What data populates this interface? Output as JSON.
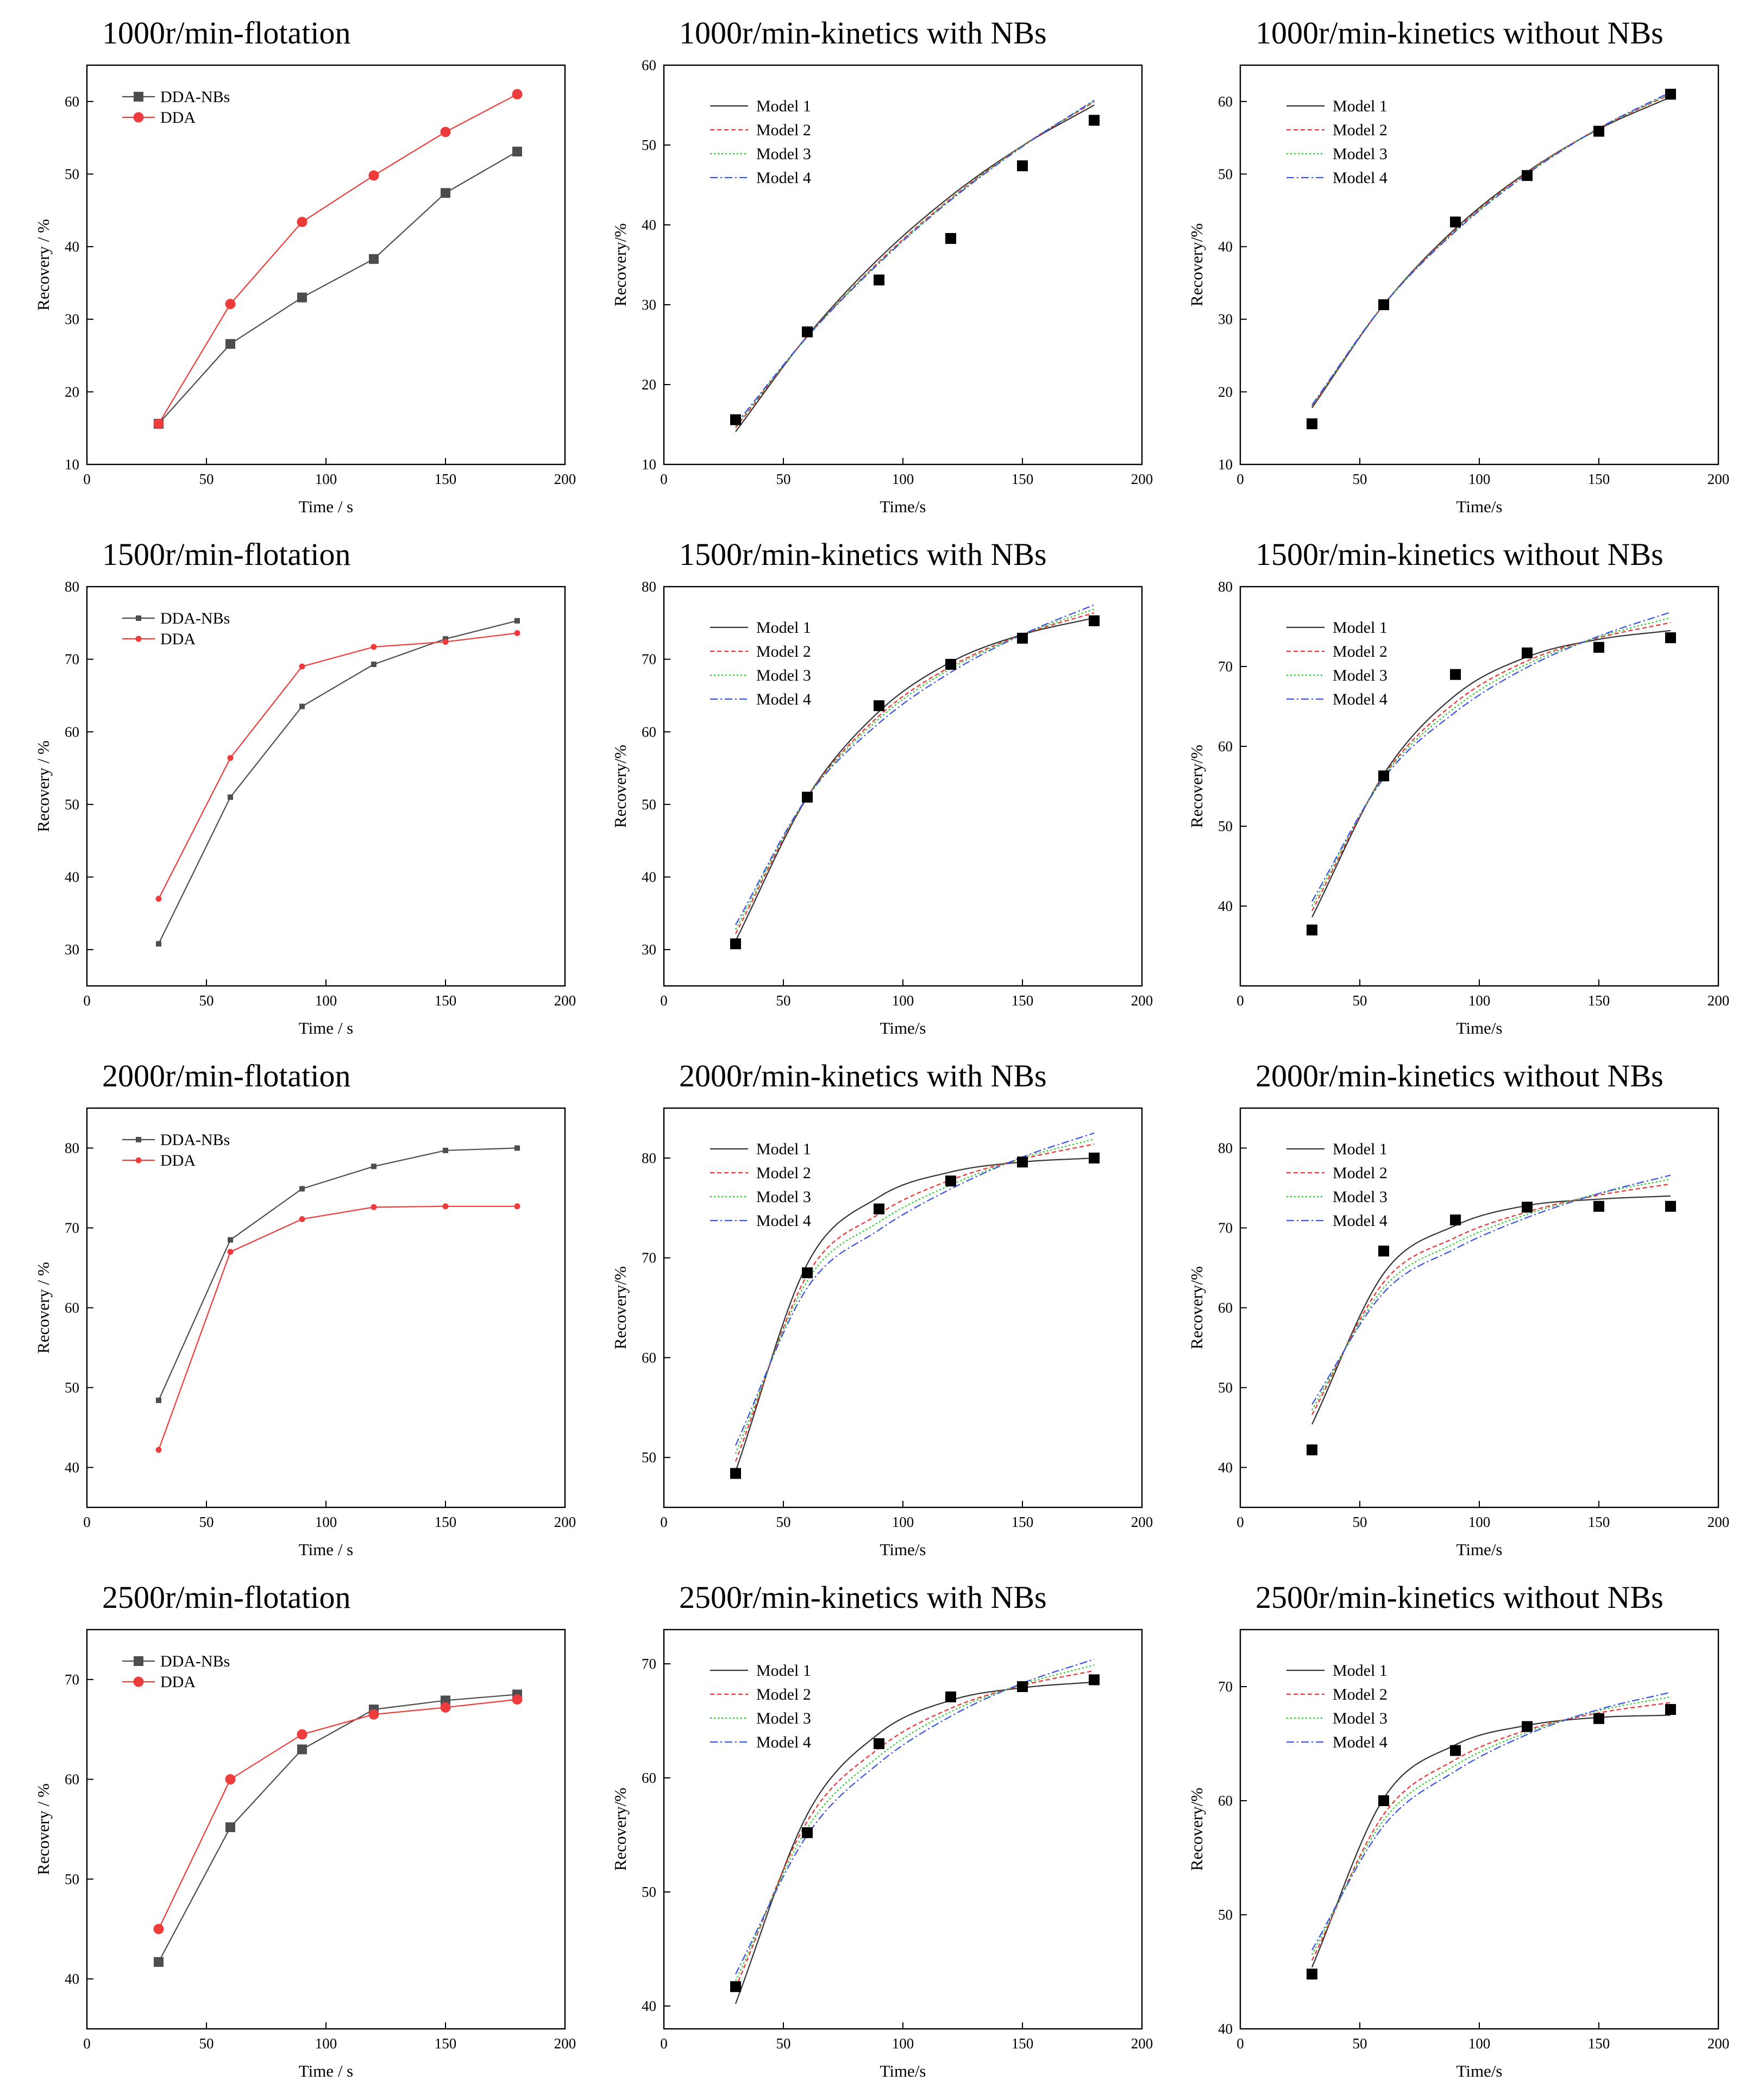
{
  "colors": {
    "dda_nbs": "#4d4d4d",
    "dda": "#ee3b3b",
    "exp": "#000000",
    "model1": "#333333",
    "model2": "#f03030",
    "model3": "#33cc33",
    "model4": "#3a52e8"
  },
  "chart_data": [
    {
      "id": "p00",
      "type": "line",
      "title": "1000r/min-flotation",
      "xlabel": "Time / s",
      "ylabel": "Recovery / %",
      "xlim": [
        0,
        200
      ],
      "ylim": [
        10,
        65
      ],
      "xticks": [
        0,
        50,
        100,
        150,
        200
      ],
      "yticks": [
        10,
        20,
        30,
        40,
        50,
        60
      ],
      "x": [
        30,
        60,
        90,
        120,
        150,
        180
      ],
      "markers": "large",
      "series": [
        {
          "name": "DDA-NBs",
          "values": [
            15.6,
            26.6,
            33.0,
            38.3,
            47.4,
            53.1
          ]
        },
        {
          "name": "DDA",
          "values": [
            15.6,
            32.1,
            43.4,
            49.8,
            55.8,
            61.0
          ]
        }
      ]
    },
    {
      "id": "p01",
      "type": "scatter",
      "title": "1000r/min-kinetics with NBs",
      "xlabel": "Time/s",
      "ylabel": "Recovery/%",
      "xlim": [
        0,
        200
      ],
      "ylim": [
        10,
        60
      ],
      "xticks": [
        0,
        50,
        100,
        150,
        200
      ],
      "yticks": [
        10,
        20,
        30,
        40,
        50,
        60
      ],
      "x": [
        30,
        60,
        90,
        120,
        150,
        180
      ],
      "values": [
        15.6,
        26.6,
        33.1,
        38.3,
        47.4,
        53.1
      ],
      "series": [
        {
          "name": "Model 1",
          "curve": [
            14.1,
            26.1,
            35.8,
            43.6,
            49.9,
            55.0
          ],
          "curve_x": [
            30,
            60,
            90,
            120,
            150,
            180
          ]
        },
        {
          "name": "Model 2",
          "curve": [
            14.6,
            26.0,
            35.4,
            43.3,
            49.9,
            55.4
          ],
          "curve_x": [
            30,
            60,
            90,
            120,
            150,
            180
          ]
        },
        {
          "name": "Model 3",
          "curve": [
            14.8,
            26.0,
            35.3,
            43.2,
            49.9,
            55.5
          ],
          "curve_x": [
            30,
            60,
            90,
            120,
            150,
            180
          ]
        },
        {
          "name": "Model 4",
          "curve": [
            15.0,
            26.0,
            35.2,
            43.1,
            49.8,
            55.6
          ],
          "curve_x": [
            30,
            60,
            90,
            120,
            150,
            180
          ]
        }
      ]
    },
    {
      "id": "p02",
      "type": "scatter",
      "title": "1000r/min-kinetics without NBs",
      "xlabel": "Time/s",
      "ylabel": "Recovery/%",
      "xlim": [
        0,
        200
      ],
      "ylim": [
        10,
        65
      ],
      "xticks": [
        0,
        50,
        100,
        150,
        200
      ],
      "yticks": [
        10,
        20,
        30,
        40,
        50,
        60
      ],
      "x": [
        30,
        60,
        90,
        120,
        150,
        180
      ],
      "values": [
        15.6,
        32.0,
        43.4,
        49.8,
        55.9,
        61.0
      ],
      "series": [
        {
          "name": "Model 1",
          "curve": [
            17.8,
            32.0,
            42.5,
            50.3,
            56.2,
            60.6
          ],
          "curve_x": [
            30,
            60,
            90,
            120,
            150,
            180
          ]
        },
        {
          "name": "Model 2",
          "curve": [
            18.0,
            32.0,
            42.3,
            50.2,
            56.3,
            61.0
          ],
          "curve_x": [
            30,
            60,
            90,
            120,
            150,
            180
          ]
        },
        {
          "name": "Model 3",
          "curve": [
            18.1,
            32.0,
            42.2,
            50.1,
            56.3,
            61.1
          ],
          "curve_x": [
            30,
            60,
            90,
            120,
            150,
            180
          ]
        },
        {
          "name": "Model 4",
          "curve": [
            18.2,
            32.0,
            42.1,
            50.0,
            56.3,
            61.3
          ],
          "curve_x": [
            30,
            60,
            90,
            120,
            150,
            180
          ]
        }
      ]
    },
    {
      "id": "p10",
      "type": "line",
      "title": "1500r/min-flotation",
      "xlabel": "Time / s",
      "ylabel": "Recovery / %",
      "xlim": [
        0,
        200
      ],
      "ylim": [
        25,
        80
      ],
      "xticks": [
        0,
        50,
        100,
        150,
        200
      ],
      "yticks": [
        30,
        40,
        50,
        60,
        70,
        80
      ],
      "x": [
        30,
        60,
        90,
        120,
        150,
        180
      ],
      "markers": "small",
      "series": [
        {
          "name": "DDA-NBs",
          "values": [
            30.8,
            51.0,
            63.5,
            69.3,
            72.8,
            75.3
          ]
        },
        {
          "name": "DDA",
          "values": [
            37.0,
            56.4,
            69.0,
            71.7,
            72.4,
            73.6
          ]
        }
      ]
    },
    {
      "id": "p11",
      "type": "scatter",
      "title": "1500r/min-kinetics with NBs",
      "xlabel": "Time/s",
      "ylabel": "Recovery/%",
      "xlim": [
        0,
        200
      ],
      "ylim": [
        25,
        80
      ],
      "xticks": [
        0,
        50,
        100,
        150,
        200
      ],
      "yticks": [
        30,
        40,
        50,
        60,
        70,
        80
      ],
      "x": [
        30,
        60,
        90,
        120,
        150,
        180
      ],
      "values": [
        30.8,
        51.0,
        63.6,
        69.3,
        72.9,
        75.3
      ],
      "series": [
        {
          "name": "Model 1",
          "curve": [
            31.2,
            51.0,
            62.8,
            69.6,
            73.4,
            75.7
          ],
          "curve_x": [
            30,
            60,
            90,
            120,
            150,
            180
          ]
        },
        {
          "name": "Model 2",
          "curve": [
            32.2,
            51.0,
            62.2,
            69.0,
            73.4,
            76.4
          ],
          "curve_x": [
            30,
            60,
            90,
            120,
            150,
            180
          ]
        },
        {
          "name": "Model 3",
          "curve": [
            32.8,
            51.0,
            61.8,
            68.7,
            73.4,
            76.9
          ],
          "curve_x": [
            30,
            60,
            90,
            120,
            150,
            180
          ]
        },
        {
          "name": "Model 4",
          "curve": [
            33.4,
            51.0,
            61.2,
            68.2,
            73.4,
            77.5
          ],
          "curve_x": [
            30,
            60,
            90,
            120,
            150,
            180
          ]
        }
      ]
    },
    {
      "id": "p12",
      "type": "scatter",
      "title": "1500r/min-kinetics without NBs",
      "xlabel": "Time/s",
      "ylabel": "Recovery/%",
      "xlim": [
        0,
        200
      ],
      "ylim": [
        30,
        80
      ],
      "xticks": [
        0,
        50,
        100,
        150,
        200
      ],
      "yticks": [
        40,
        50,
        60,
        70,
        80
      ],
      "x": [
        30,
        60,
        90,
        120,
        150,
        180
      ],
      "values": [
        37.0,
        56.3,
        69.0,
        71.7,
        72.4,
        73.6
      ],
      "series": [
        {
          "name": "Model 1",
          "curve": [
            38.6,
            56.5,
            66.4,
            71.2,
            73.4,
            74.5
          ],
          "curve_x": [
            30,
            60,
            90,
            120,
            150,
            180
          ]
        },
        {
          "name": "Model 2",
          "curve": [
            39.4,
            56.3,
            65.5,
            70.7,
            73.6,
            75.5
          ],
          "curve_x": [
            30,
            60,
            90,
            120,
            150,
            180
          ]
        },
        {
          "name": "Model 3",
          "curve": [
            40.0,
            56.2,
            64.9,
            70.3,
            73.7,
            76.1
          ],
          "curve_x": [
            30,
            60,
            90,
            120,
            150,
            180
          ]
        },
        {
          "name": "Model 4",
          "curve": [
            40.6,
            56.0,
            64.3,
            69.9,
            73.8,
            76.8
          ],
          "curve_x": [
            30,
            60,
            90,
            120,
            150,
            180
          ]
        }
      ]
    },
    {
      "id": "p20",
      "type": "line",
      "title": "2000r/min-flotation",
      "xlabel": "Time / s",
      "ylabel": "Recovery / %",
      "xlim": [
        0,
        200
      ],
      "ylim": [
        35,
        85
      ],
      "xticks": [
        0,
        50,
        100,
        150,
        200
      ],
      "yticks": [
        40,
        50,
        60,
        70,
        80
      ],
      "x": [
        30,
        60,
        90,
        120,
        150,
        180
      ],
      "markers": "small",
      "series": [
        {
          "name": "DDA-NBs",
          "values": [
            48.4,
            68.5,
            74.9,
            77.7,
            79.7,
            80.0
          ]
        },
        {
          "name": "DDA",
          "values": [
            42.2,
            67.0,
            71.1,
            72.6,
            72.7,
            72.7
          ]
        }
      ]
    },
    {
      "id": "p21",
      "type": "scatter",
      "title": "2000r/min-kinetics with NBs",
      "xlabel": "Time/s",
      "ylabel": "Recovery/%",
      "xlim": [
        0,
        200
      ],
      "ylim": [
        45,
        85
      ],
      "xticks": [
        0,
        50,
        100,
        150,
        200
      ],
      "yticks": [
        50,
        60,
        70,
        80
      ],
      "x": [
        30,
        60,
        90,
        120,
        150,
        180
      ],
      "values": [
        48.4,
        68.5,
        74.9,
        77.7,
        79.6,
        80.0
      ],
      "series": [
        {
          "name": "Model 1",
          "curve": [
            48.6,
            69.4,
            76.1,
            78.6,
            79.6,
            80.0
          ],
          "curve_x": [
            30,
            60,
            90,
            120,
            150,
            180
          ]
        },
        {
          "name": "Model 2",
          "curve": [
            49.6,
            68.3,
            74.4,
            77.8,
            79.9,
            81.4
          ],
          "curve_x": [
            30,
            60,
            90,
            120,
            150,
            180
          ]
        },
        {
          "name": "Model 3",
          "curve": [
            50.4,
            67.7,
            73.6,
            77.3,
            80.0,
            81.9
          ],
          "curve_x": [
            30,
            60,
            90,
            120,
            150,
            180
          ]
        },
        {
          "name": "Model 4",
          "curve": [
            51.2,
            67.0,
            72.8,
            76.9,
            80.1,
            82.5
          ],
          "curve_x": [
            30,
            60,
            90,
            120,
            150,
            180
          ]
        }
      ]
    },
    {
      "id": "p22",
      "type": "scatter",
      "title": "2000r/min-kinetics without NBs",
      "xlabel": "Time/s",
      "ylabel": "Recovery/%",
      "xlim": [
        0,
        200
      ],
      "ylim": [
        35,
        85
      ],
      "xticks": [
        0,
        50,
        100,
        150,
        200
      ],
      "yticks": [
        40,
        50,
        60,
        70,
        80
      ],
      "x": [
        30,
        60,
        90,
        120,
        150,
        180
      ],
      "values": [
        42.2,
        67.1,
        71.0,
        72.6,
        72.7,
        72.7
      ],
      "series": [
        {
          "name": "Model 1",
          "curve": [
            45.4,
            64.3,
            70.3,
            72.8,
            73.6,
            74.0
          ],
          "curve_x": [
            30,
            60,
            90,
            120,
            150,
            180
          ]
        },
        {
          "name": "Model 2",
          "curve": [
            46.6,
            63.2,
            68.8,
            72.0,
            74.1,
            75.5
          ],
          "curve_x": [
            30,
            60,
            90,
            120,
            150,
            180
          ]
        },
        {
          "name": "Model 3",
          "curve": [
            47.2,
            62.5,
            68.1,
            71.7,
            74.3,
            76.1
          ],
          "curve_x": [
            30,
            60,
            90,
            120,
            150,
            180
          ]
        },
        {
          "name": "Model 4",
          "curve": [
            47.9,
            61.9,
            67.4,
            71.3,
            74.3,
            76.6
          ],
          "curve_x": [
            30,
            60,
            90,
            120,
            150,
            180
          ]
        }
      ]
    },
    {
      "id": "p30",
      "type": "line",
      "title": "2500r/min-flotation",
      "xlabel": "Time / s",
      "ylabel": "Recovery / %",
      "xlim": [
        0,
        200
      ],
      "ylim": [
        35,
        75
      ],
      "xticks": [
        0,
        50,
        100,
        150,
        200
      ],
      "yticks": [
        40,
        50,
        60,
        70
      ],
      "x": [
        30,
        60,
        90,
        120,
        150,
        180
      ],
      "markers": "large",
      "series": [
        {
          "name": "DDA-NBs",
          "values": [
            41.7,
            55.2,
            63.0,
            67.0,
            67.9,
            68.5
          ]
        },
        {
          "name": "DDA",
          "values": [
            45.0,
            60.0,
            64.5,
            66.5,
            67.2,
            68.0
          ]
        }
      ]
    },
    {
      "id": "p31",
      "type": "scatter",
      "title": "2500r/min-kinetics with NBs",
      "xlabel": "Time/s",
      "ylabel": "Recovery/%",
      "xlim": [
        0,
        200
      ],
      "ylim": [
        38,
        73
      ],
      "xticks": [
        0,
        50,
        100,
        150,
        200
      ],
      "yticks": [
        40,
        50,
        60,
        70
      ],
      "x": [
        30,
        60,
        90,
        120,
        150,
        180
      ],
      "values": [
        41.7,
        55.2,
        63.0,
        67.1,
        68.0,
        68.6
      ],
      "series": [
        {
          "name": "Model 1",
          "curve": [
            40.2,
            56.8,
            63.9,
            66.8,
            67.9,
            68.4
          ],
          "curve_x": [
            30,
            60,
            90,
            120,
            150,
            180
          ]
        },
        {
          "name": "Model 2",
          "curve": [
            41.6,
            56.2,
            62.6,
            66.1,
            68.1,
            69.4
          ],
          "curve_x": [
            30,
            60,
            90,
            120,
            150,
            180
          ]
        },
        {
          "name": "Model 3",
          "curve": [
            42.2,
            55.6,
            61.9,
            65.8,
            68.2,
            69.9
          ],
          "curve_x": [
            30,
            60,
            90,
            120,
            150,
            180
          ]
        },
        {
          "name": "Model 4",
          "curve": [
            42.8,
            55.0,
            61.3,
            65.4,
            68.3,
            70.4
          ],
          "curve_x": [
            30,
            60,
            90,
            120,
            150,
            180
          ]
        }
      ]
    },
    {
      "id": "p32",
      "type": "scatter",
      "title": "2500r/min-kinetics without NBs",
      "xlabel": "Time/s",
      "ylabel": "Recovery/%",
      "xlim": [
        0,
        200
      ],
      "ylim": [
        40,
        75
      ],
      "xticks": [
        0,
        50,
        100,
        150,
        200
      ],
      "yticks": [
        40,
        50,
        60,
        70
      ],
      "x": [
        30,
        60,
        90,
        120,
        150,
        180
      ],
      "values": [
        44.8,
        60.0,
        64.4,
        66.5,
        67.2,
        68.0
      ],
      "series": [
        {
          "name": "Model 1",
          "curve": [
            45.4,
            60.2,
            64.9,
            66.6,
            67.3,
            67.5
          ],
          "curve_x": [
            30,
            60,
            90,
            120,
            150,
            180
          ]
        },
        {
          "name": "Model 2",
          "curve": [
            46.0,
            58.8,
            63.6,
            66.2,
            67.7,
            68.6
          ],
          "curve_x": [
            30,
            60,
            90,
            120,
            150,
            180
          ]
        },
        {
          "name": "Model 3",
          "curve": [
            46.5,
            58.3,
            63.1,
            66.0,
            67.9,
            69.1
          ],
          "curve_x": [
            30,
            60,
            90,
            120,
            150,
            180
          ]
        },
        {
          "name": "Model 4",
          "curve": [
            46.9,
            57.8,
            62.6,
            65.8,
            68.0,
            69.5
          ],
          "curve_x": [
            30,
            60,
            90,
            120,
            150,
            180
          ]
        }
      ]
    }
  ]
}
